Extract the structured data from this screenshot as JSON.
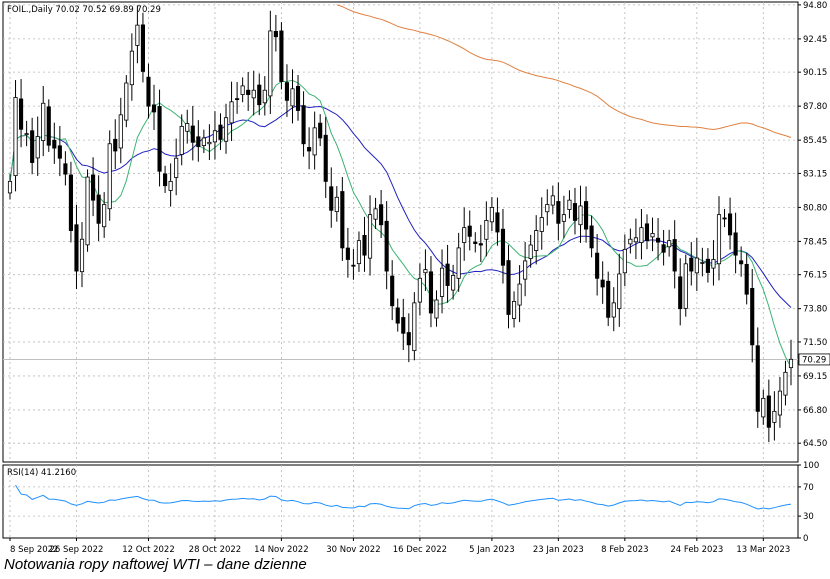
{
  "chart_data": {
    "type": "candlestick",
    "header": "FOIL.,Daily  70.02 70.52 69.89 70.29",
    "last_price_label": "70.29",
    "last_price": 70.29,
    "ylim": [
      63.2,
      95.0
    ],
    "y_ticks": [
      "94.80",
      "92.45",
      "90.15",
      "87.80",
      "85.45",
      "83.15",
      "80.80",
      "78.45",
      "76.15",
      "73.80",
      "71.50",
      "69.15",
      "66.80",
      "64.50"
    ],
    "x_labels": [
      "8 Sep 2022",
      "26 Sep 2022",
      "12 Oct 2022",
      "28 Oct 2022",
      "14 Nov 2022",
      "30 Nov 2022",
      "16 Dec 2022",
      "5 Jan 2023",
      "23 Jan 2023",
      "8 Feb 2023",
      "24 Feb 2023",
      "13 Mar 2023"
    ],
    "grid": true,
    "colors": {
      "up_body": "#ffffff",
      "down_body": "#000000",
      "ma_short": "#3cb371",
      "ma_mid": "#2020c0",
      "ma_long": "#e08040",
      "rsi": "#1e90ff"
    },
    "close": [
      82.6,
      88.4,
      86.2,
      85.9,
      83.9,
      85.7,
      88.0,
      85.1,
      84.9,
      84.2,
      83.1,
      79.2,
      76.4,
      78.6,
      82.9,
      81.3,
      79.7,
      81.0,
      85.2,
      84.7,
      87.2,
      89.4,
      91.6,
      93.4,
      90.2,
      87.8,
      87.4,
      83.3,
      82.3,
      82.6,
      84.2,
      86.4,
      86.6,
      85.3,
      85.0,
      85.6,
      85.3,
      86.1,
      85.5,
      87.0,
      88.1,
      88.3,
      89.2,
      88.6,
      88.9,
      87.9,
      88.9,
      93.0,
      92.6,
      89.5,
      88.2,
      89.0,
      87.5,
      85.2,
      84.7,
      86.3,
      85.6,
      82.6,
      80.6,
      81.5,
      78.0,
      77.2,
      76.8,
      78.5,
      77.5,
      80.3,
      80.7,
      79.6,
      76.4,
      74.0,
      72.8,
      72.1,
      71.3,
      74.2,
      75.9,
      76.5,
      73.5,
      74.4,
      76.6,
      75.4,
      76.1,
      78.0,
      79.4,
      78.8,
      78.3,
      78.2,
      79.9,
      80.8,
      79.1,
      76.8,
      73.4,
      74.3,
      75.5,
      77.1,
      78.2,
      79.2,
      80.1,
      81.0,
      81.6,
      79.7,
      80.3,
      81.3,
      79.9,
      80.9,
      79.3,
      78.0,
      75.9,
      75.3,
      73.2,
      74.2,
      76.2,
      77.9,
      78.6,
      78.7,
      79.4,
      78.5,
      79.0,
      78.4,
      77.7,
      78.5,
      76.4,
      73.8,
      76.9,
      76.4,
      77.3,
      77.0,
      76.3,
      77.2,
      80.3,
      80.0,
      78.9,
      77.5,
      76.9,
      74.8,
      71.3,
      66.7,
      67.6,
      65.6,
      66.7,
      68.1,
      69.4,
      70.3
    ],
    "rsi": {
      "label": "RSI(14) 41.2160",
      "period": 14,
      "value": 41.216,
      "ylim": [
        0,
        100
      ],
      "ticks": [
        100,
        70,
        30,
        0
      ]
    }
  },
  "caption": "Notowania ropy naftowej WTI – dane dzienne"
}
